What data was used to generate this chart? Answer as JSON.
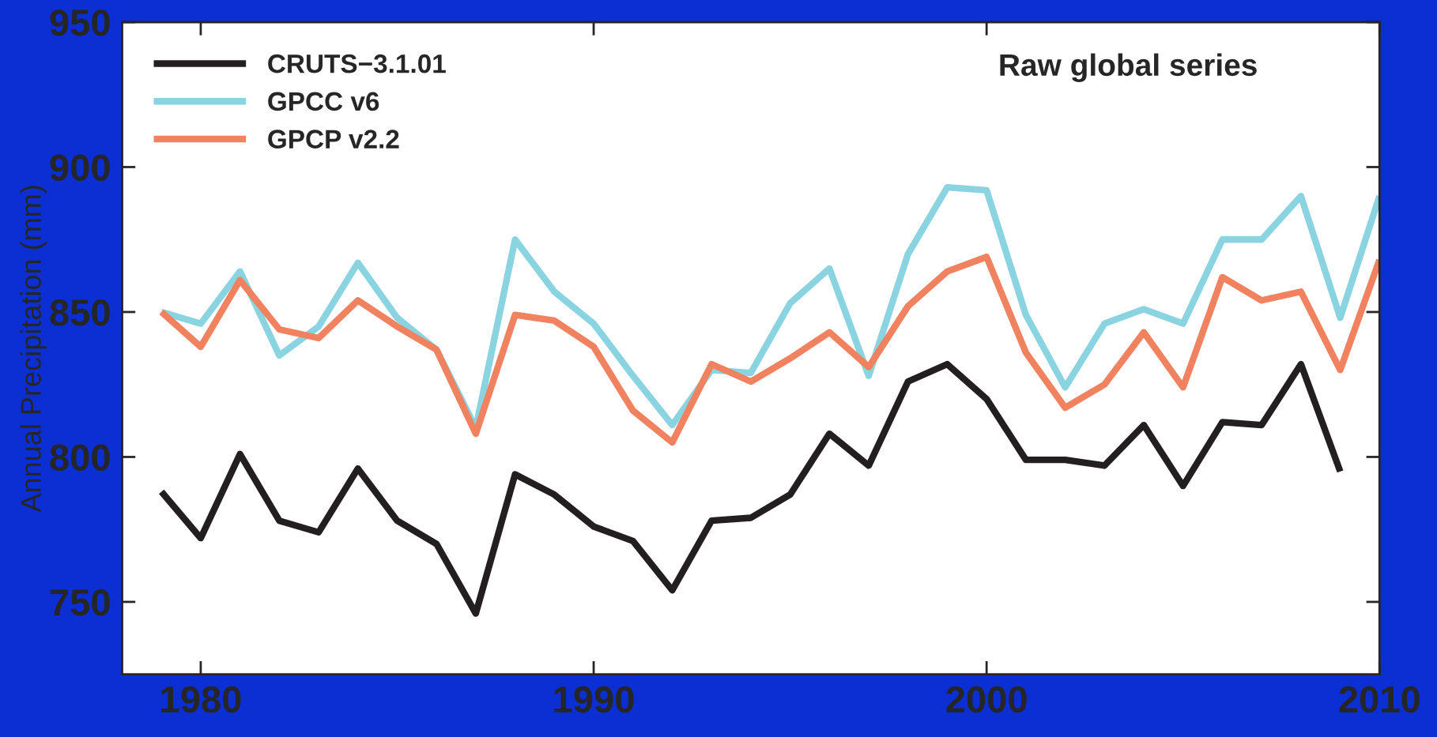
{
  "chart_data": {
    "type": "line",
    "ylabel": "Annual Precipitation (mm)",
    "annotations": [
      "Raw global series"
    ],
    "x": [
      1979,
      1980,
      1981,
      1982,
      1983,
      1984,
      1985,
      1986,
      1987,
      1988,
      1989,
      1990,
      1991,
      1992,
      1993,
      1994,
      1995,
      1996,
      1997,
      1998,
      1999,
      2000,
      2001,
      2002,
      2003,
      2004,
      2005,
      2006,
      2007,
      2008,
      2009,
      2010
    ],
    "series": [
      {
        "name": "CRUTS−3.1.01",
        "color": "#231f20",
        "values": [
          788,
          772,
          801,
          778,
          774,
          796,
          778,
          770,
          746,
          794,
          787,
          776,
          771,
          754,
          778,
          779,
          787,
          808,
          797,
          826,
          832,
          820,
          799,
          799,
          797,
          811,
          790,
          812,
          811,
          832,
          795,
          null
        ]
      },
      {
        "name": "GPCC v6",
        "color": "#8ad3e0",
        "values": [
          850,
          846,
          864,
          835,
          845,
          867,
          848,
          837,
          810,
          875,
          857,
          846,
          828,
          811,
          830,
          829,
          853,
          865,
          828,
          870,
          893,
          892,
          849,
          824,
          846,
          851,
          846,
          875,
          875,
          890,
          848,
          890
        ]
      },
      {
        "name": "GPCP v2.2",
        "color": "#f0825f",
        "values": [
          850,
          838,
          861,
          844,
          841,
          854,
          845,
          837,
          808,
          849,
          847,
          838,
          816,
          805,
          832,
          826,
          834,
          843,
          831,
          852,
          864,
          869,
          836,
          817,
          825,
          843,
          824,
          862,
          854,
          857,
          830,
          868
        ]
      }
    ],
    "xlim": [
      1978,
      2010
    ],
    "xticks": [
      1980,
      1990,
      2000,
      2010
    ],
    "ylim": [
      725,
      950
    ],
    "yticks": [
      750,
      800,
      850,
      900,
      950
    ],
    "grid": false,
    "legend": "top left",
    "line_style": "solid",
    "marker": "none"
  }
}
